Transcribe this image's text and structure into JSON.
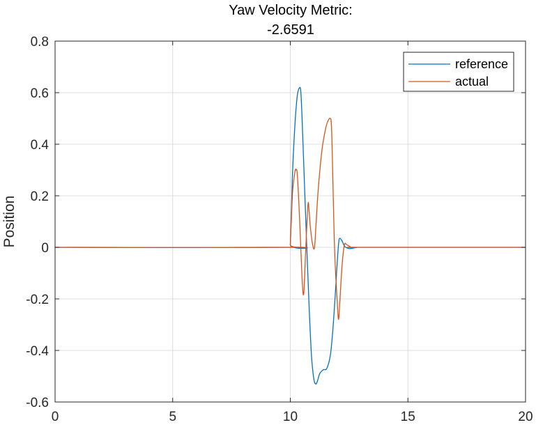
{
  "chart_data": {
    "type": "line",
    "title_lines": [
      "Yaw Velocity Metric:",
      "-2.6591"
    ],
    "xlabel": "",
    "ylabel": "Position",
    "xlim": [
      0,
      20
    ],
    "ylim": [
      -0.6,
      0.8
    ],
    "xticks": [
      0,
      5,
      10,
      15,
      20
    ],
    "yticks": [
      -0.6,
      -0.4,
      -0.2,
      0,
      0.2,
      0.4,
      0.6,
      0.8
    ],
    "xtick_labels": [
      "0",
      "5",
      "10",
      "15",
      "20"
    ],
    "ytick_labels": [
      "-0.6",
      "-0.4",
      "-0.2",
      "0",
      "0.2",
      "0.4",
      "0.6",
      "0.8"
    ],
    "grid": true,
    "legend_position": "top-right",
    "series": [
      {
        "name": "reference",
        "color": "#0072BD",
        "x": [
          0,
          9.98,
          10.0,
          10.05,
          10.1,
          10.2,
          10.3,
          10.4,
          10.45,
          10.5,
          10.6,
          10.7,
          10.8,
          10.9,
          11.0,
          11.08,
          11.15,
          11.25,
          11.4,
          11.55,
          11.7,
          11.8,
          11.9,
          12.0,
          12.06,
          12.1,
          12.2,
          12.3,
          12.4,
          12.5,
          12.6,
          12.8,
          13.0,
          20
        ],
        "y": [
          0,
          0,
          0.01,
          0.15,
          0.3,
          0.48,
          0.59,
          0.62,
          0.6,
          0.5,
          0.25,
          0.0,
          -0.23,
          -0.42,
          -0.51,
          -0.53,
          -0.52,
          -0.49,
          -0.475,
          -0.47,
          -0.42,
          -0.33,
          -0.2,
          -0.05,
          0.02,
          0.035,
          0.025,
          0.005,
          -0.002,
          -0.005,
          -0.004,
          -0.001,
          0,
          0
        ]
      },
      {
        "name": "actual",
        "color": "#D95319",
        "x": [
          0,
          9.98,
          10.0,
          10.05,
          10.1,
          10.2,
          10.25,
          10.3,
          10.4,
          10.5,
          10.57,
          10.65,
          10.75,
          10.8,
          10.85,
          10.95,
          11.03,
          11.1,
          11.2,
          11.35,
          11.5,
          11.6,
          11.7,
          11.75,
          11.8,
          11.85,
          11.9,
          12.0,
          12.05,
          12.1,
          12.2,
          12.3,
          12.4,
          12.6,
          12.8,
          13.0,
          20
        ],
        "y": [
          0,
          0,
          0.01,
          0.12,
          0.22,
          0.295,
          0.3,
          0.28,
          0.1,
          -0.12,
          -0.18,
          -0.02,
          0.165,
          0.14,
          0.08,
          0.01,
          0.0,
          0.1,
          0.24,
          0.38,
          0.46,
          0.49,
          0.5,
          0.47,
          0.3,
          0.1,
          -0.05,
          -0.22,
          -0.28,
          -0.22,
          -0.07,
          0.01,
          0.01,
          0.0,
          0,
          0,
          0
        ]
      }
    ]
  }
}
